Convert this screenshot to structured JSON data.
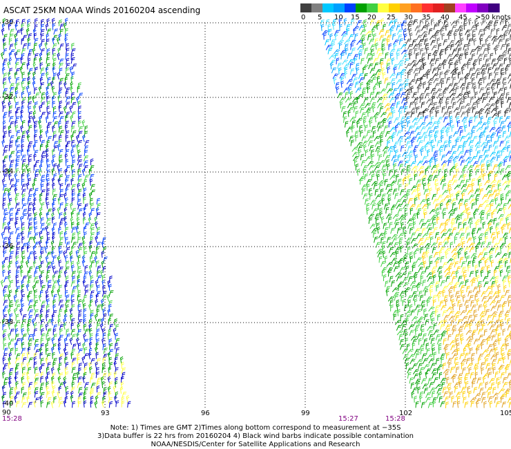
{
  "title": "ASCAT 25KM NOAA Winds 20160204 ascending",
  "colorbar": {
    "unit": ">50 knots",
    "ticks": [
      "0",
      "5",
      "10",
      "15",
      "20",
      "25",
      "30",
      "35",
      "40",
      "45"
    ],
    "colors": [
      "#404040",
      "#808080",
      "#00c8ff",
      "#00a0ff",
      "#0040ff",
      "#00a000",
      "#40d040",
      "#ffff40",
      "#ffd000",
      "#ffa020",
      "#ff7020",
      "#ff3030",
      "#e02020",
      "#a04020",
      "#ff40ff",
      "#c000ff",
      "#8000c0",
      "#400080"
    ]
  },
  "map": {
    "lat_labels": [
      "-30",
      "-32",
      "-34",
      "-36",
      "-38",
      "-40"
    ],
    "lon_labels": [
      "90",
      "93",
      "96",
      "99",
      "102",
      "105"
    ],
    "times": [
      "15:28",
      "15:27",
      "15:28"
    ],
    "swath_colors": {
      "west": [
        "#00a000",
        "#40d040",
        "#0040ff",
        "#0000c8"
      ],
      "west_south": [
        "#00a000",
        "#ffff40",
        "#0000c8"
      ],
      "east_blue": [
        "#00c8ff",
        "#00a0ff",
        "#0040ff",
        "#40e0ff"
      ],
      "east_dark": [
        "#202020",
        "#404040",
        "#606060"
      ],
      "east_yellow": [
        "#ffff40",
        "#ffd000"
      ],
      "east_green": [
        "#00a000",
        "#40d040"
      ],
      "east_orange": [
        "#e0a020",
        "#ffd000"
      ]
    }
  },
  "notes": {
    "line1": "Note: 1) Times are GMT 2)Times along bottom correspond to measurement at −35S",
    "line2": "3)Data buffer is 22 hrs from 20160204 4) Black wind barbs indicate possible contamination",
    "line3": "NOAA/NESDIS/Center for Satellite Applications and Research"
  }
}
